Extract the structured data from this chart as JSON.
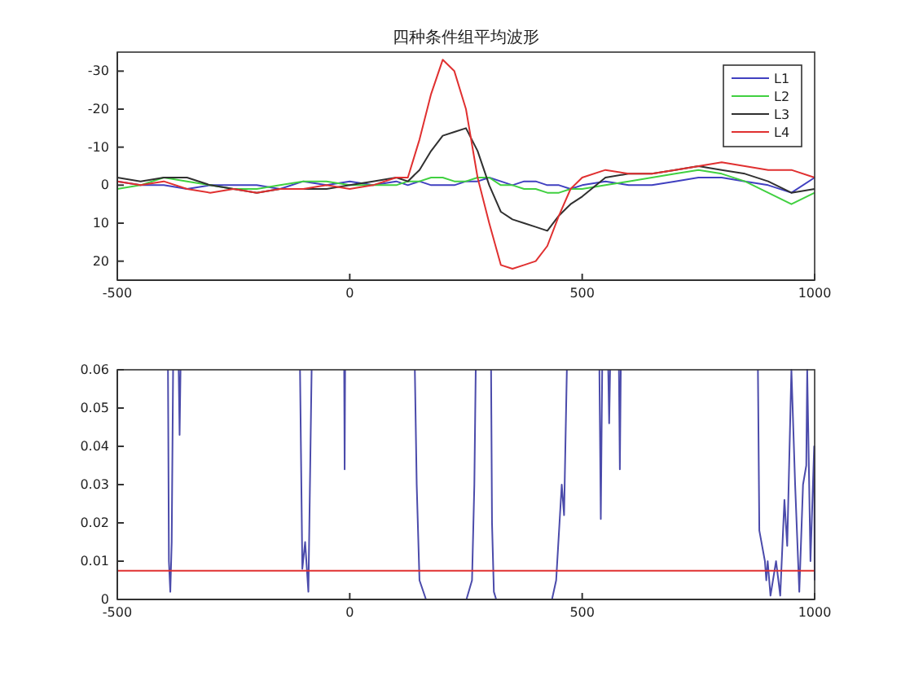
{
  "chart_data": [
    {
      "type": "line",
      "title": "四种条件组平均波形",
      "x": [
        -500,
        -450,
        -400,
        -350,
        -300,
        -250,
        -200,
        -150,
        -100,
        -50,
        0,
        50,
        100,
        125,
        150,
        175,
        200,
        225,
        250,
        275,
        300,
        325,
        350,
        375,
        400,
        425,
        450,
        475,
        500,
        550,
        600,
        650,
        700,
        750,
        800,
        850,
        900,
        950,
        1000
      ],
      "series": [
        {
          "name": "L1",
          "color": "#4040c0",
          "values": [
            -1,
            0,
            0,
            1,
            0,
            0,
            0,
            1,
            -1,
            0,
            -1,
            0,
            -1,
            0,
            -1,
            0,
            0,
            0,
            -1,
            -1,
            -2,
            -1,
            0,
            -1,
            -1,
            0,
            0,
            1,
            0,
            -1,
            0,
            0,
            -1,
            -2,
            -2,
            -1,
            0,
            2,
            -2
          ]
        },
        {
          "name": "L2",
          "color": "#40d040",
          "values": [
            1,
            0,
            -2,
            -1,
            0,
            1,
            1,
            0,
            -1,
            -1,
            0,
            0,
            0,
            -1,
            -1,
            -2,
            -2,
            -1,
            -1,
            -2,
            -2,
            0,
            0,
            1,
            1,
            2,
            2,
            1,
            1,
            0,
            -1,
            -2,
            -3,
            -4,
            -3,
            -1,
            2,
            5,
            2
          ]
        },
        {
          "name": "L3",
          "color": "#303030",
          "values": [
            -2,
            -1,
            -2,
            -2,
            0,
            1,
            2,
            1,
            1,
            1,
            0,
            -1,
            -2,
            -1,
            -4,
            -9,
            -13,
            -14,
            -15,
            -9,
            0,
            7,
            9,
            10,
            11,
            12,
            8,
            5,
            3,
            -2,
            -3,
            -3,
            -4,
            -5,
            -4,
            -3,
            -1,
            2,
            1
          ]
        },
        {
          "name": "L4",
          "color": "#e03030",
          "values": [
            -1,
            0,
            -1,
            1,
            2,
            1,
            2,
            1,
            1,
            0,
            1,
            0,
            -2,
            -2,
            -12,
            -24,
            -33,
            -30,
            -20,
            -2,
            10,
            21,
            22,
            21,
            20,
            16,
            8,
            1,
            -2,
            -4,
            -3,
            -3,
            -4,
            -5,
            -6,
            -5,
            -4,
            -4,
            -2
          ]
        }
      ],
      "xlim": [
        -500,
        1000
      ],
      "xticks": [
        -500,
        0,
        500,
        1000
      ],
      "ylim": [
        25,
        -35
      ],
      "yticks": [
        -30,
        -20,
        -10,
        0,
        10,
        20
      ],
      "legend": "top right"
    },
    {
      "type": "line",
      "series": [
        {
          "color": "#4b4bab",
          "x": [
            -391,
            -389,
            -386,
            -383,
            -380,
            -374,
            -368,
            -366,
            -364,
            -350,
            -107,
            -102,
            -96,
            -89,
            -82,
            -50,
            -12,
            -11,
            -10,
            0,
            140,
            144,
            150,
            164,
            200,
            251,
            263,
            268,
            271,
            290,
            304,
            306,
            310,
            315,
            400,
            435,
            444,
            456,
            461,
            467,
            500,
            537,
            540,
            543,
            550,
            556,
            558,
            560,
            570,
            579,
            581,
            583,
            600,
            878,
            881,
            893,
            896,
            899,
            905,
            917,
            926,
            931,
            935,
            941,
            950,
            958,
            967,
            975,
            982,
            984,
            991,
            999,
            1000
          ],
          "values": [
            0.06,
            0.01,
            0.002,
            0.015,
            0.06,
            null,
            0.06,
            0.043,
            0.06,
            null,
            0.06,
            0.008,
            0.015,
            0.002,
            0.06,
            null,
            0.06,
            0.034,
            0.06,
            null,
            0.06,
            0.03,
            0.005,
            0,
            0,
            0,
            0.005,
            0.03,
            0.06,
            null,
            0.06,
            0.02,
            0.002,
            0,
            0,
            0,
            0.005,
            0.03,
            0.022,
            0.06,
            null,
            0.06,
            0.021,
            0.06,
            null,
            0.06,
            0.046,
            0.06,
            null,
            0.06,
            0.034,
            0.06,
            null,
            0.06,
            0.018,
            0.01,
            0.005,
            0.01,
            0.001,
            0.01,
            0.001,
            0.015,
            0.026,
            0.014,
            0.06,
            0.03,
            0.002,
            0.03,
            0.035,
            0.06,
            0.01,
            0.04,
            0.005
          ]
        }
      ],
      "xlim": [
        -500,
        1000
      ],
      "xticks": [
        -500,
        0,
        500,
        1000
      ],
      "ylim": [
        0,
        0.06
      ],
      "yticks": [
        0,
        0.01,
        0.02,
        0.03,
        0.04,
        0.05,
        0.06
      ],
      "ref_lines": [
        {
          "axis": "y",
          "value": 0.0075,
          "color": "#e03030"
        }
      ]
    }
  ]
}
